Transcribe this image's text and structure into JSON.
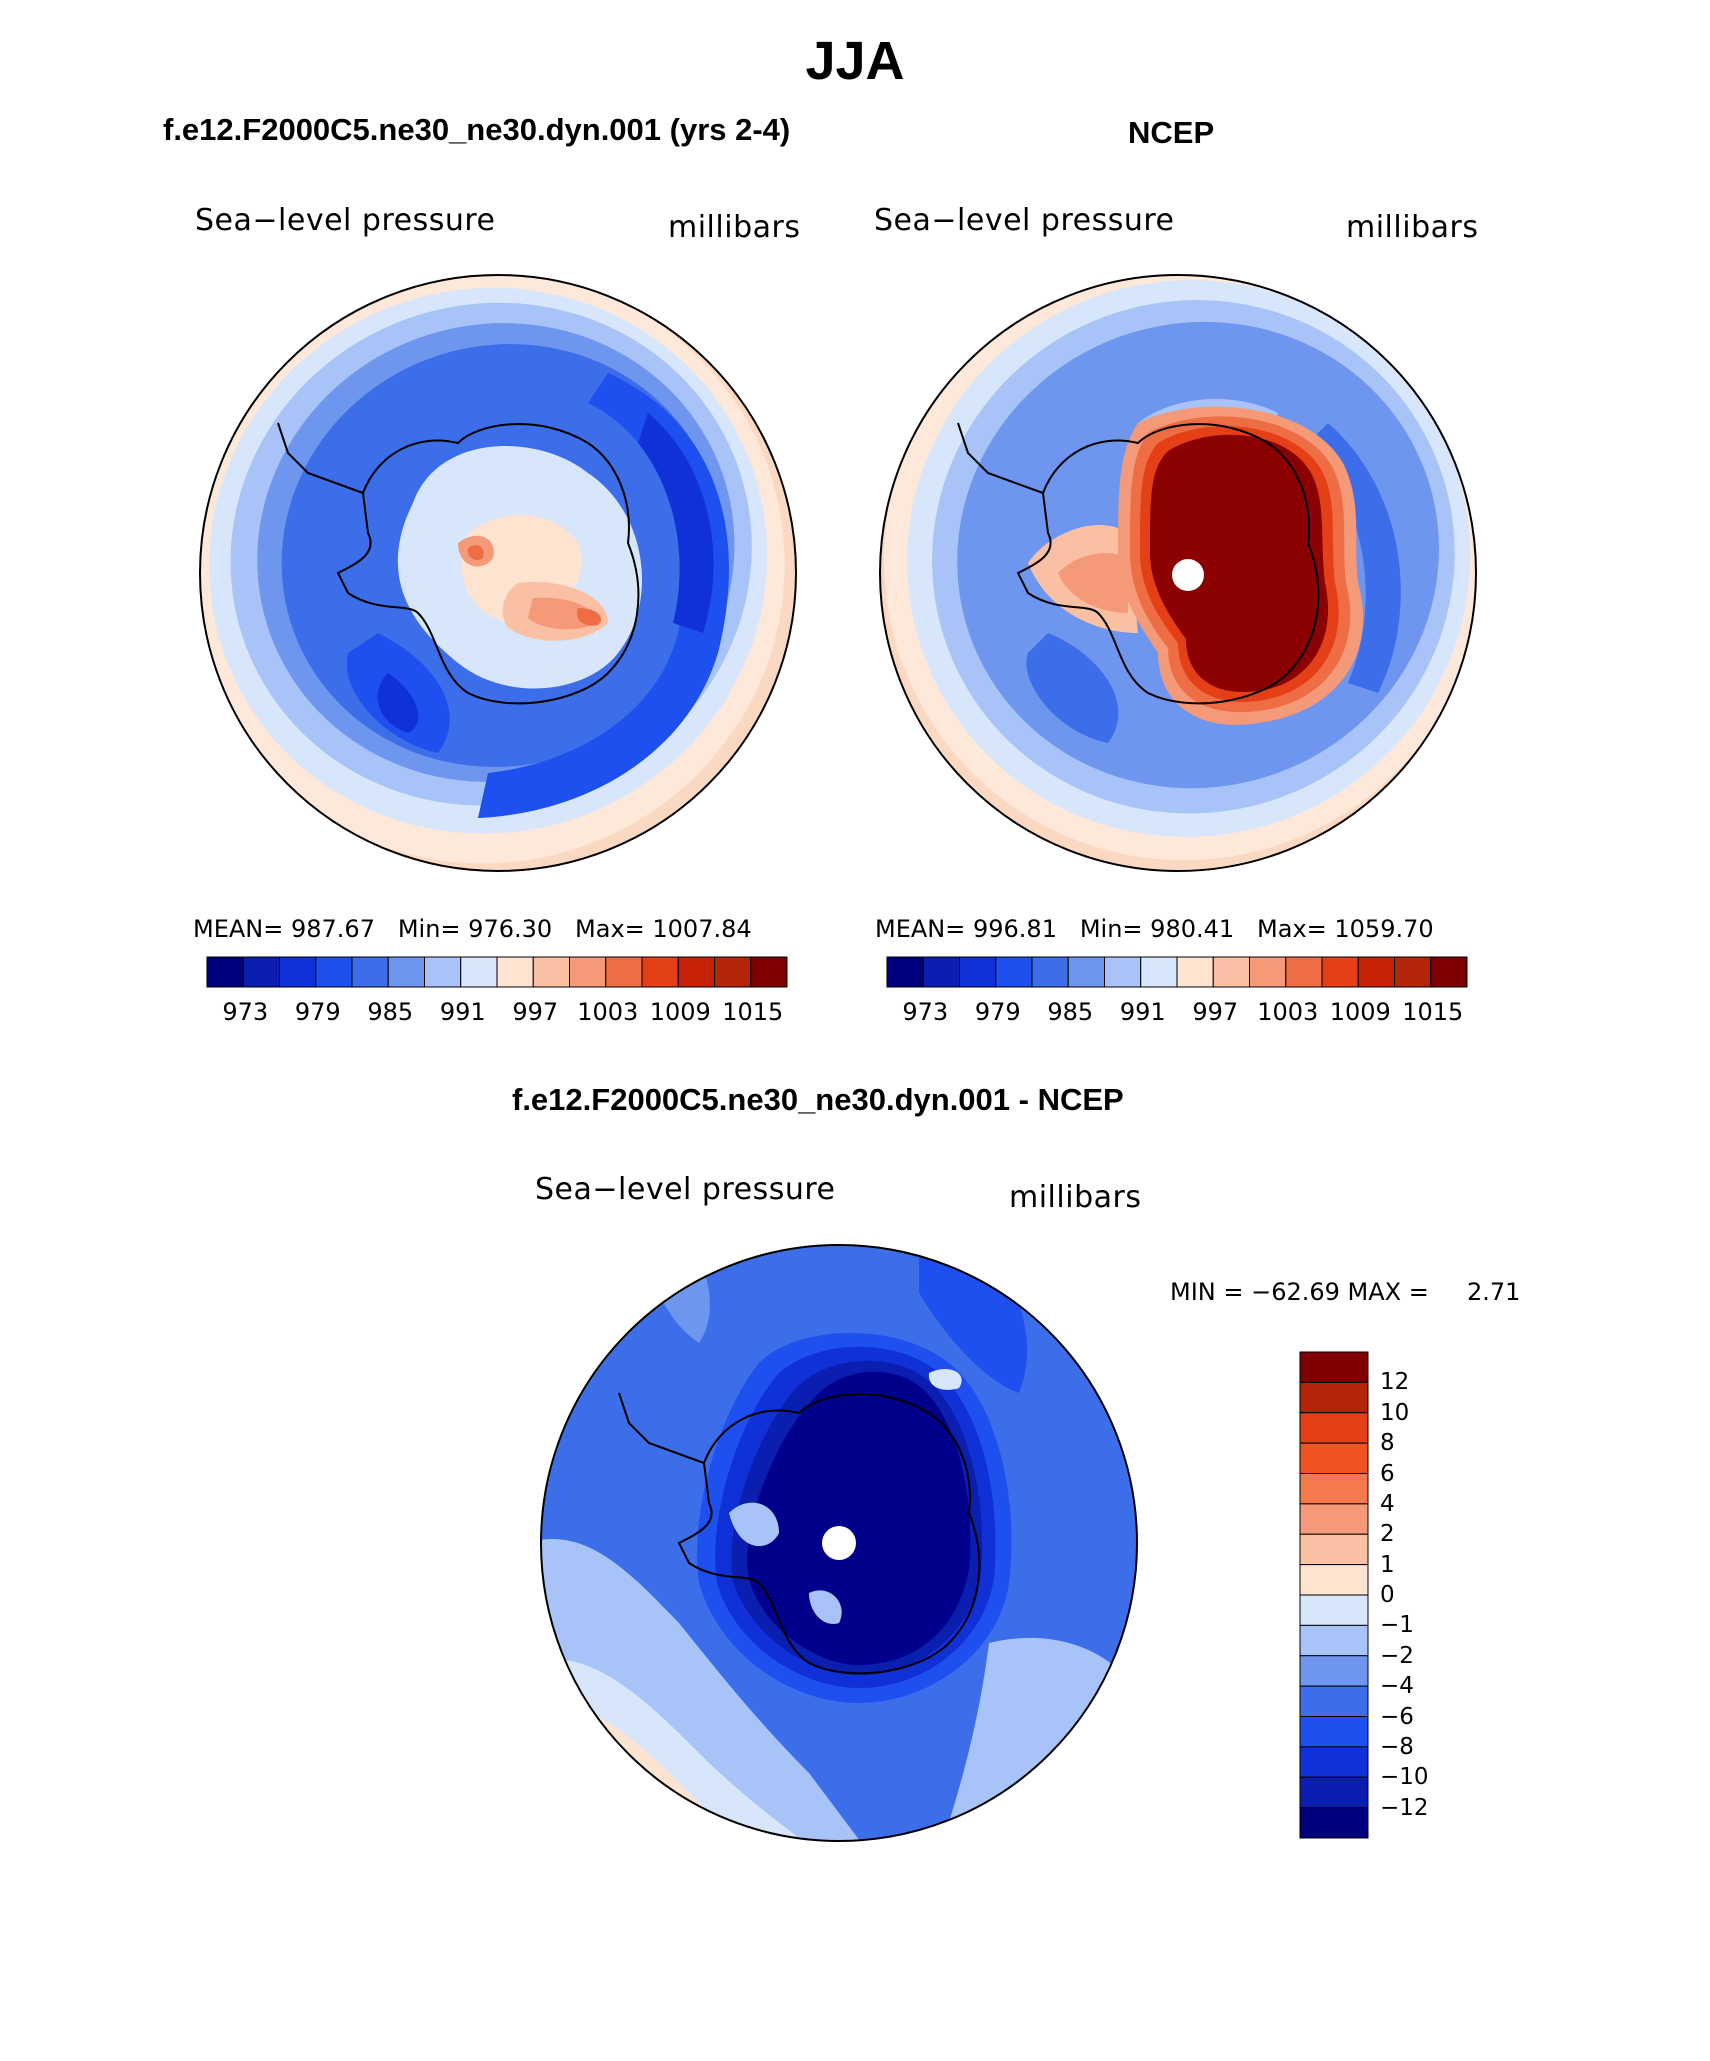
{
  "figure": {
    "title": "JJA",
    "variable": "Sea−level pressure",
    "units": "millibars"
  },
  "panels": [
    {
      "id": "model",
      "title": "f.e12.F2000C5.ne30_ne30.dyn.001 (yrs 2-4)",
      "left_label": "Sea−level pressure",
      "right_label": "millibars",
      "stats_text": "MEAN= 987.67   Min= 976.30   Max= 1007.84",
      "stats": {
        "mean": 987.67,
        "min": 976.3,
        "max": 1007.84
      }
    },
    {
      "id": "ncep",
      "title": "NCEP",
      "left_label": "Sea−level pressure",
      "right_label": "millibars",
      "stats_text": "MEAN= 996.81   Min= 980.41   Max= 1059.70",
      "stats": {
        "mean": 996.81,
        "min": 980.41,
        "max": 1059.7
      }
    }
  ],
  "difference_panel": {
    "title": "f.e12.F2000C5.ne30_ne30.dyn.001 - NCEP",
    "left_label": "Sea−level pressure",
    "right_label": "millibars",
    "minmax_text": "MIN = −62.69 MAX =     2.71",
    "stats": {
      "min": -62.69,
      "max": 2.71
    }
  },
  "abs_colorbar": {
    "colors": [
      "#00007f",
      "#0a1fb0",
      "#1030d8",
      "#1e4fef",
      "#3d6ee9",
      "#6e96ef",
      "#a8c3f7",
      "#d8e6fb",
      "#fde3d0",
      "#f9c0a4",
      "#f49a78",
      "#ef6d44",
      "#e43f17",
      "#c52206",
      "#b42408",
      "#7f0000"
    ],
    "tick_labels": [
      "973",
      "979",
      "985",
      "991",
      "997",
      "1003",
      "1009",
      "1015"
    ]
  },
  "diff_colorbar": {
    "colors_top_to_bottom": [
      "#7f0000",
      "#b42408",
      "#e43f17",
      "#ef5322",
      "#f5794d",
      "#f49a78",
      "#f9c0a4",
      "#fde3d0",
      "#d8e6fb",
      "#a8c3f7",
      "#6e96ef",
      "#3d6ee9",
      "#1e4fef",
      "#1030d8",
      "#0a1fb0",
      "#00007f"
    ],
    "tick_labels": [
      "12",
      "10",
      "8",
      "6",
      "4",
      "2",
      "1",
      "0",
      "−1",
      "−2",
      "−4",
      "−6",
      "−8",
      "−10",
      "−12"
    ]
  },
  "palette": {
    "deep_blue": "#00008b",
    "mid_blue": "#2458e0",
    "light_blue": "#b8cff7",
    "pale_blue": "#dce9fb",
    "peach": "#fde3d0",
    "salmon": "#f4a07d",
    "orange_red": "#ea5a2a",
    "dark_red": "#8b0000",
    "coast": "#000000"
  }
}
